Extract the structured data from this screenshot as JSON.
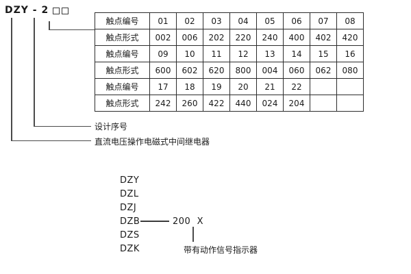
{
  "model": {
    "code": "DZY - 2",
    "digit_boxes": 2
  },
  "table": {
    "rows": [
      {
        "label": "触点编号",
        "values": [
          "01",
          "02",
          "03",
          "04",
          "05",
          "06",
          "07",
          "08"
        ]
      },
      {
        "label": "触点形式",
        "values": [
          "002",
          "006",
          "202",
          "220",
          "240",
          "400",
          "402",
          "420"
        ]
      },
      {
        "label": "触点编号",
        "values": [
          "09",
          "10",
          "11",
          "12",
          "13",
          "14",
          "15",
          "16"
        ]
      },
      {
        "label": "触点形式",
        "values": [
          "600",
          "602",
          "620",
          "800",
          "004",
          "060",
          "062",
          "080"
        ]
      },
      {
        "label": "触点编号",
        "values": [
          "17",
          "18",
          "19",
          "20",
          "21",
          "22",
          "",
          ""
        ]
      },
      {
        "label": "触点形式",
        "values": [
          "242",
          "260",
          "422",
          "440",
          "024",
          "204",
          "",
          ""
        ]
      }
    ]
  },
  "callouts": {
    "design_serial": "设计序号",
    "relay_description": "直流电压操作电磁式中间继电器"
  },
  "series_list": {
    "items": [
      {
        "code": "DZY"
      },
      {
        "code": "DZL"
      },
      {
        "code": "DZJ"
      },
      {
        "code": "DZB",
        "suffix": "200  X"
      },
      {
        "code": "DZS"
      },
      {
        "code": "DZK",
        "note": "带有动作信号指示器"
      }
    ]
  },
  "colors": {
    "background": "#ffffff",
    "line": "#4a4a4a",
    "border": "#2b2b2b",
    "text": "#1a1a1a"
  }
}
